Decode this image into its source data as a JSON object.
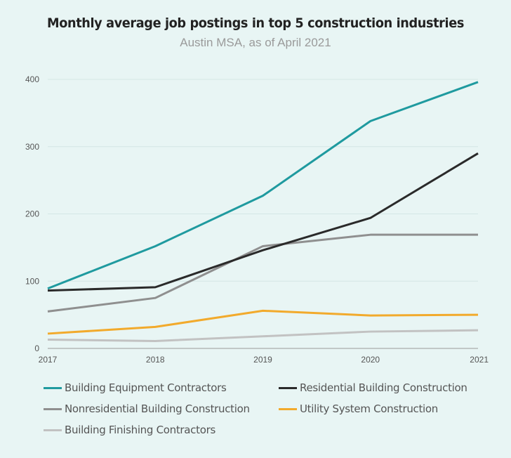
{
  "chart_data": {
    "type": "line",
    "title": "Monthly average job postings in top 5 construction industries",
    "subtitle": "Austin MSA, as of April 2021",
    "xlabel": "",
    "ylabel": "",
    "x": [
      "2017",
      "2018",
      "2019",
      "2020",
      "2021"
    ],
    "ylim": [
      0,
      400
    ],
    "yticks": [
      0,
      100,
      200,
      300,
      400
    ],
    "grid": "horizontal",
    "legend_position": "bottom",
    "series": [
      {
        "name": "Building Equipment Contractors",
        "color": "#1f9a9f",
        "values": [
          89,
          152,
          227,
          338,
          396
        ]
      },
      {
        "name": "Residential Building Construction",
        "color": "#2a2a2a",
        "values": [
          86,
          91,
          146,
          194,
          290
        ]
      },
      {
        "name": "Nonresidential Building Construction",
        "color": "#8f8f8f",
        "values": [
          55,
          75,
          152,
          169,
          169
        ]
      },
      {
        "name": "Utility System Construction",
        "color": "#f2aa2c",
        "values": [
          22,
          32,
          56,
          49,
          50
        ]
      },
      {
        "name": "Building Finishing Contractors",
        "color": "#c2c2c2",
        "values": [
          13,
          11,
          18,
          25,
          27
        ]
      }
    ]
  }
}
